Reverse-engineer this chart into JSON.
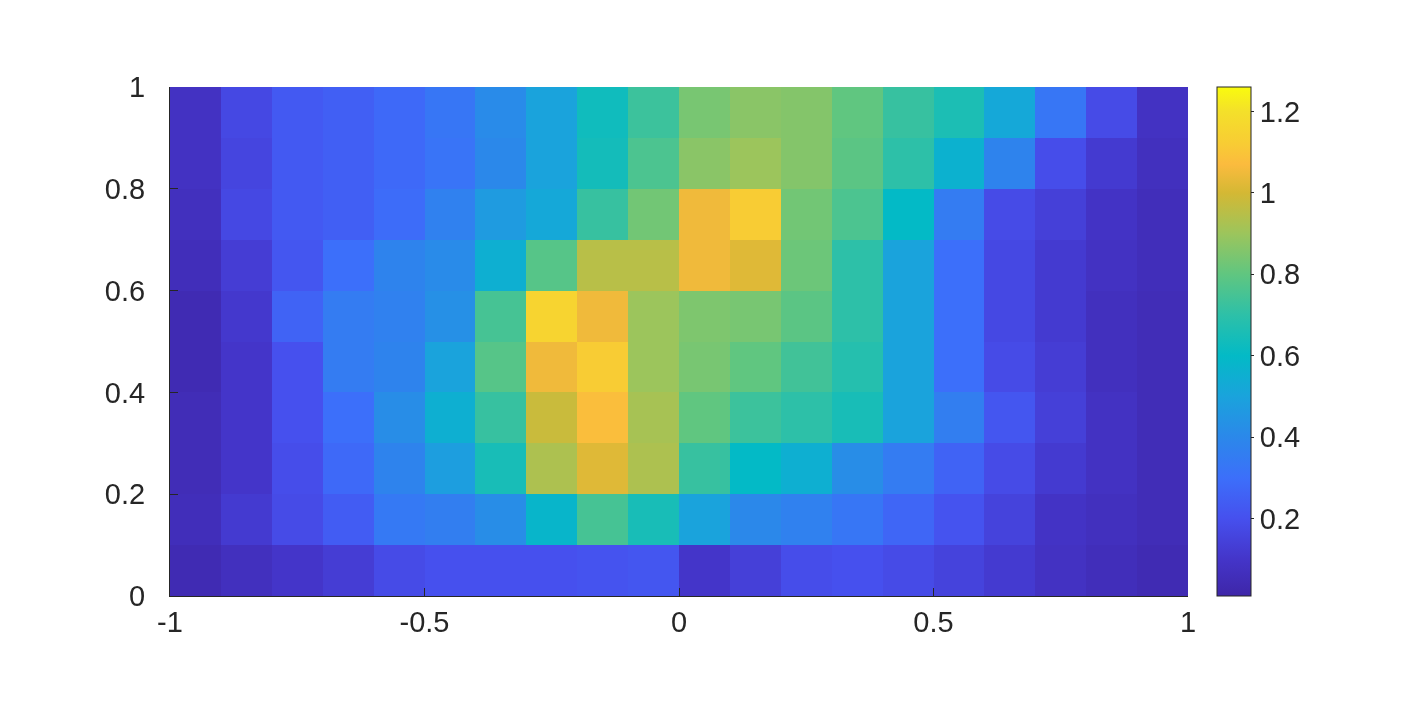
{
  "chart_data": {
    "type": "heatmap",
    "x": [
      -0.95,
      -0.85,
      -0.75,
      -0.65,
      -0.55,
      -0.45,
      -0.35,
      -0.25,
      -0.15,
      -0.05,
      0.05,
      0.15,
      0.25,
      0.35,
      0.45,
      0.55,
      0.65,
      0.75,
      0.85,
      0.95
    ],
    "xlim": [
      -1,
      1
    ],
    "xticks": [
      -1,
      -0.5,
      0,
      0.5,
      1
    ],
    "ylim": [
      0,
      1
    ],
    "yticks": [
      0,
      0.2,
      0.4,
      0.6,
      0.8,
      1
    ],
    "cells": [
      [
        0.08,
        0.17,
        0.23,
        0.25,
        0.28,
        0.33,
        0.41,
        0.5,
        0.63,
        0.73,
        0.84,
        0.87,
        0.86,
        0.8,
        0.72,
        0.66,
        0.52,
        0.33,
        0.18,
        0.08
      ],
      [
        0.08,
        0.16,
        0.23,
        0.25,
        0.28,
        0.32,
        0.4,
        0.5,
        0.64,
        0.76,
        0.87,
        0.9,
        0.86,
        0.79,
        0.7,
        0.56,
        0.38,
        0.19,
        0.12,
        0.07
      ],
      [
        0.07,
        0.17,
        0.23,
        0.25,
        0.29,
        0.37,
        0.47,
        0.52,
        0.72,
        0.83,
        1.05,
        1.12,
        0.83,
        0.76,
        0.6,
        0.35,
        0.18,
        0.14,
        0.09,
        0.06
      ],
      [
        0.06,
        0.13,
        0.22,
        0.3,
        0.38,
        0.41,
        0.55,
        0.78,
        0.95,
        0.95,
        1.05,
        1.02,
        0.82,
        0.7,
        0.5,
        0.3,
        0.17,
        0.12,
        0.08,
        0.06
      ],
      [
        0.04,
        0.11,
        0.26,
        0.35,
        0.37,
        0.43,
        0.75,
        1.15,
        1.05,
        0.9,
        0.85,
        0.84,
        0.79,
        0.7,
        0.5,
        0.3,
        0.17,
        0.12,
        0.07,
        0.05
      ],
      [
        0.04,
        0.1,
        0.2,
        0.35,
        0.38,
        0.5,
        0.78,
        1.05,
        1.12,
        0.9,
        0.84,
        0.8,
        0.74,
        0.68,
        0.5,
        0.3,
        0.18,
        0.13,
        0.07,
        0.05
      ],
      [
        0.05,
        0.1,
        0.2,
        0.3,
        0.42,
        0.55,
        0.72,
        0.98,
        1.08,
        0.92,
        0.8,
        0.73,
        0.7,
        0.65,
        0.5,
        0.36,
        0.22,
        0.14,
        0.08,
        0.05
      ],
      [
        0.05,
        0.1,
        0.19,
        0.28,
        0.38,
        0.48,
        0.65,
        0.93,
        1.02,
        0.93,
        0.72,
        0.6,
        0.55,
        0.42,
        0.35,
        0.26,
        0.18,
        0.12,
        0.08,
        0.05
      ],
      [
        0.06,
        0.12,
        0.18,
        0.24,
        0.34,
        0.36,
        0.42,
        0.58,
        0.75,
        0.65,
        0.5,
        0.4,
        0.37,
        0.33,
        0.27,
        0.21,
        0.15,
        0.09,
        0.07,
        0.05
      ],
      [
        0.04,
        0.07,
        0.1,
        0.13,
        0.18,
        0.2,
        0.2,
        0.2,
        0.21,
        0.22,
        0.1,
        0.14,
        0.19,
        0.2,
        0.18,
        0.15,
        0.12,
        0.08,
        0.06,
        0.04
      ]
    ],
    "clim": [
      0.01,
      1.26
    ],
    "cticks": [
      0.2,
      0.4,
      0.6,
      0.8,
      1,
      1.2
    ]
  }
}
